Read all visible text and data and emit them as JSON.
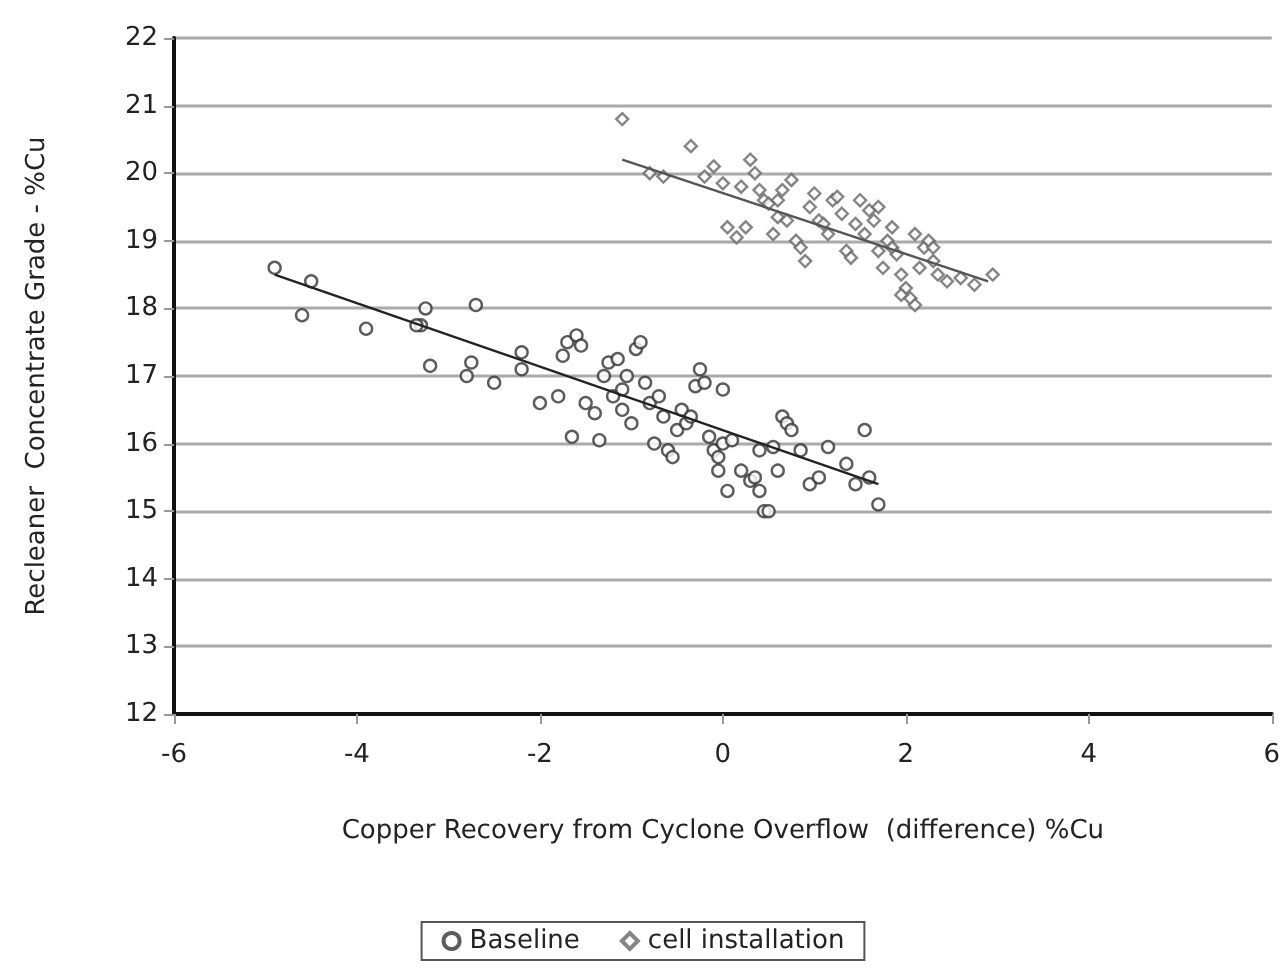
{
  "chart_data": {
    "type": "scatter",
    "xlabel": "Copper Recovery from Cyclone Overflow  (difference) %Cu",
    "ylabel": "Recleaner  Concentrate Grade - %Cu",
    "xlim": [
      -6,
      6
    ],
    "xticks": [
      -6,
      -4,
      -2,
      0,
      2,
      4,
      6
    ],
    "ylim": [
      12,
      22
    ],
    "yticks": [
      12,
      13,
      14,
      15,
      16,
      17,
      18,
      19,
      20,
      21,
      22
    ],
    "grid": "y",
    "legend": "bottom",
    "series": [
      {
        "name": "Baseline",
        "color": "#333333",
        "marker": "circle",
        "x": [
          -4.9,
          -4.6,
          -4.5,
          -3.9,
          -3.3,
          -3.35,
          -3.25,
          -3.2,
          -2.8,
          -2.75,
          -2.7,
          -2.5,
          -2.2,
          -2.2,
          -2.0,
          -1.8,
          -1.75,
          -1.7,
          -1.6,
          -1.55,
          -1.65,
          -1.5,
          -1.4,
          -1.35,
          -1.3,
          -1.25,
          -1.2,
          -1.15,
          -1.1,
          -1.1,
          -1.05,
          -1.0,
          -0.95,
          -0.9,
          -0.85,
          -0.8,
          -0.75,
          -0.7,
          -0.65,
          -0.6,
          -0.55,
          -0.5,
          -0.45,
          -0.4,
          -0.35,
          -0.3,
          -0.25,
          -0.2,
          -0.15,
          -0.1,
          -0.05,
          0.0,
          0.0,
          0.05,
          -0.05,
          0.1,
          0.2,
          0.3,
          0.35,
          0.4,
          0.4,
          0.45,
          0.5,
          0.55,
          0.6,
          0.65,
          0.7,
          0.75,
          0.85,
          0.95,
          1.05,
          1.15,
          1.35,
          1.45,
          1.55,
          1.6,
          1.7
        ],
        "values": [
          18.6,
          17.9,
          18.4,
          17.7,
          17.75,
          17.75,
          18.0,
          17.15,
          17.0,
          17.2,
          18.05,
          16.9,
          17.1,
          17.35,
          16.6,
          16.7,
          17.3,
          17.5,
          17.6,
          17.45,
          16.1,
          16.6,
          16.45,
          16.05,
          17.0,
          17.2,
          16.7,
          17.25,
          16.8,
          16.5,
          17.0,
          16.3,
          17.4,
          17.5,
          16.9,
          16.6,
          16.0,
          16.7,
          16.4,
          15.9,
          15.8,
          16.2,
          16.5,
          16.3,
          16.4,
          16.85,
          17.1,
          16.9,
          16.1,
          15.9,
          15.8,
          16.0,
          16.8,
          15.3,
          15.6,
          16.05,
          15.6,
          15.45,
          15.5,
          15.9,
          15.3,
          15.0,
          15.0,
          15.95,
          15.6,
          16.4,
          16.3,
          16.2,
          15.9,
          15.4,
          15.5,
          15.95,
          15.7,
          15.4,
          16.2,
          15.5,
          15.1
        ]
      },
      {
        "name": "cell installation",
        "color": "#666666",
        "marker": "diamond",
        "x": [
          -1.1,
          -0.8,
          -0.65,
          -0.35,
          -0.1,
          0.0,
          0.05,
          0.15,
          0.2,
          0.25,
          0.3,
          0.35,
          0.4,
          0.45,
          0.5,
          0.55,
          0.6,
          0.65,
          0.7,
          0.8,
          0.85,
          0.9,
          0.95,
          1.0,
          1.05,
          1.1,
          1.15,
          1.2,
          1.3,
          1.35,
          1.4,
          1.45,
          1.5,
          1.55,
          1.6,
          1.65,
          1.7,
          1.75,
          1.8,
          1.85,
          1.9,
          1.95,
          2.0,
          2.05,
          2.1,
          2.15,
          2.2,
          2.25,
          2.3,
          2.35,
          2.45,
          2.6,
          2.75,
          2.95,
          0.75,
          1.25,
          1.7,
          2.1,
          -0.2,
          0.6,
          1.95,
          1.85,
          2.3
        ],
        "values": [
          20.8,
          20.0,
          19.95,
          20.4,
          20.1,
          19.85,
          19.2,
          19.05,
          19.8,
          19.2,
          20.2,
          20.0,
          19.75,
          19.6,
          19.55,
          19.1,
          19.35,
          19.75,
          19.3,
          19.0,
          18.9,
          18.7,
          19.5,
          19.7,
          19.3,
          19.25,
          19.1,
          19.6,
          19.4,
          18.85,
          18.75,
          19.25,
          19.6,
          19.1,
          19.45,
          19.3,
          18.85,
          18.6,
          19.0,
          18.9,
          18.8,
          18.5,
          18.3,
          18.15,
          18.05,
          18.6,
          18.9,
          19.0,
          18.7,
          18.5,
          18.4,
          18.45,
          18.35,
          18.5,
          19.9,
          19.65,
          19.5,
          19.1,
          19.95,
          19.6,
          18.2,
          19.2,
          18.9
        ]
      },
      {
        "type": "line",
        "color": "#222222",
        "marker": "none",
        "x": [
          -4.9,
          1.7
        ],
        "values": [
          18.5,
          15.4
        ]
      },
      {
        "type": "line",
        "color": "#555555",
        "marker": "none",
        "x": [
          -1.1,
          2.9
        ],
        "values": [
          20.2,
          18.4
        ]
      }
    ]
  }
}
